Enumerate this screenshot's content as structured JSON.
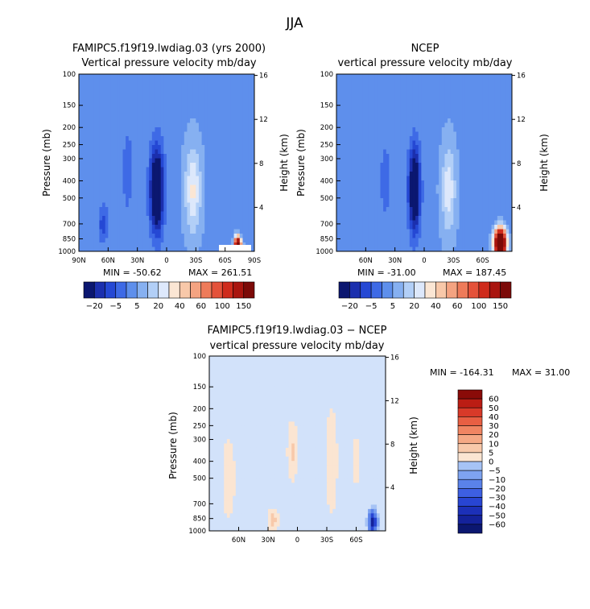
{
  "figure_title": "JJA",
  "chart_data": [
    {
      "type": "heatmap",
      "id": "model",
      "title": "FAMIPC5.f19f19.lwdiag.03 (yrs 2000)",
      "subtitle": "Vertical pressure velocity  mb/day",
      "ylabel": "Pressure (mb)",
      "y2label": "Height (km)",
      "xticks": [
        "90N",
        "60N",
        "30N",
        "0",
        "30S",
        "60S",
        "90S"
      ],
      "xtick_lat": [
        90,
        60,
        30,
        0,
        -30,
        -60,
        -90
      ],
      "xlim": [
        90,
        -90
      ],
      "yticks": [
        "100",
        "150",
        "200",
        "250",
        "300",
        "400",
        "500",
        "700",
        "850",
        "1000"
      ],
      "ytick_p": [
        100,
        150,
        200,
        250,
        300,
        400,
        500,
        700,
        850,
        1000
      ],
      "ylim": [
        1000,
        100
      ],
      "y2ticks": [
        "16",
        "12",
        "8",
        "4"
      ],
      "y2tick_km": [
        16,
        12,
        8,
        4
      ],
      "min_text": "MIN = -50.62",
      "max_text": "MAX = 261.51",
      "fill_levels": [
        -25,
        -20,
        -15,
        -10,
        -5,
        0,
        5,
        10,
        15,
        20,
        30,
        40,
        50,
        60,
        80,
        100,
        125,
        150
      ],
      "colorbar_labels": [
        "−20",
        "−5",
        "5",
        "20",
        "40",
        "60",
        "100",
        "150"
      ],
      "features": [
        {
          "lat": 10,
          "p": 450,
          "w": 7,
          "h": 0.55,
          "amp": -35
        },
        {
          "lat": 40,
          "p": 350,
          "w": 5,
          "h": 0.5,
          "amp": -9
        },
        {
          "lat": 65,
          "p": 700,
          "w": 5,
          "h": 0.25,
          "amp": -12
        },
        {
          "lat": -27,
          "p": 450,
          "w": 8,
          "h": 0.55,
          "amp": 17
        },
        {
          "lat": -73,
          "p": 930,
          "w": 3,
          "h": 0.1,
          "amp": 120
        }
      ]
    },
    {
      "type": "heatmap",
      "id": "obs",
      "title": "NCEP",
      "subtitle": "vertical pressure velocity  mb/day",
      "ylabel": "Pressure (mb)",
      "y2label": "Height (km)",
      "xticks": [
        "60N",
        "30N",
        "0",
        "30S",
        "60S"
      ],
      "xtick_lat": [
        60,
        30,
        0,
        -30,
        -60
      ],
      "xlim": [
        90,
        -90
      ],
      "yticks": [
        "100",
        "150",
        "200",
        "250",
        "300",
        "400",
        "500",
        "700",
        "850",
        "1000"
      ],
      "ytick_p": [
        100,
        150,
        200,
        250,
        300,
        400,
        500,
        700,
        850,
        1000
      ],
      "ylim": [
        1000,
        100
      ],
      "y2ticks": [
        "16",
        "12",
        "8",
        "4"
      ],
      "y2tick_km": [
        16,
        12,
        8,
        4
      ],
      "min_text": "MIN = -31.00",
      "max_text": "MAX = 187.45",
      "fill_levels": [
        -25,
        -20,
        -15,
        -10,
        -5,
        0,
        5,
        10,
        15,
        20,
        30,
        40,
        50,
        60,
        80,
        100,
        125,
        150
      ],
      "colorbar_labels": [
        "−20",
        "−5",
        "5",
        "20",
        "40",
        "60",
        "100",
        "150"
      ],
      "features": [
        {
          "lat": 10,
          "p": 450,
          "w": 6,
          "h": 0.55,
          "amp": -32
        },
        {
          "lat": 40,
          "p": 400,
          "w": 5,
          "h": 0.5,
          "amp": -8
        },
        {
          "lat": -25,
          "p": 450,
          "w": 7,
          "h": 0.55,
          "amp": 15
        },
        {
          "lat": -78,
          "p": 900,
          "w": 5,
          "h": 0.15,
          "amp": 180
        }
      ]
    },
    {
      "type": "heatmap",
      "id": "diff",
      "title": "FAMIPC5.f19f19.lwdiag.03 − NCEP",
      "subtitle": "vertical pressure velocity  mb/day",
      "ylabel": "Pressure (mb)",
      "y2label": "Height (km)",
      "xticks": [
        "60N",
        "30N",
        "0",
        "30S",
        "60S"
      ],
      "xtick_lat": [
        60,
        30,
        0,
        -30,
        -60
      ],
      "xlim": [
        90,
        -90
      ],
      "yticks": [
        "100",
        "150",
        "200",
        "250",
        "300",
        "400",
        "500",
        "700",
        "850",
        "1000"
      ],
      "ytick_p": [
        100,
        150,
        200,
        250,
        300,
        400,
        500,
        700,
        850,
        1000
      ],
      "ylim": [
        1000,
        100
      ],
      "y2ticks": [
        "16",
        "12",
        "8",
        "4"
      ],
      "y2tick_km": [
        16,
        12,
        8,
        4
      ],
      "min_text": "MIN = -164.31",
      "max_text": "MAX =  31.00",
      "fill_levels": [
        -70,
        -60,
        -50,
        -40,
        -30,
        -20,
        -10,
        -5,
        0,
        5,
        10,
        20,
        30,
        40,
        50,
        60,
        70
      ],
      "colorbar_labels": [
        "60",
        "50",
        "40",
        "30",
        "20",
        "10",
        "5",
        "0",
        "−5",
        "−10",
        "−20",
        "−30",
        "−40",
        "−50",
        "−60"
      ],
      "features": [
        {
          "lat": 25,
          "p": 870,
          "w": 4,
          "h": 0.12,
          "amp": 9
        },
        {
          "lat": 5,
          "p": 350,
          "w": 4,
          "h": 0.3,
          "amp": 7
        },
        {
          "lat": -35,
          "p": 400,
          "w": 5,
          "h": 0.6,
          "amp": 4
        },
        {
          "lat": 70,
          "p": 500,
          "w": 6,
          "h": 0.5,
          "amp": 3
        },
        {
          "lat": -60,
          "p": 400,
          "w": 3,
          "h": 0.45,
          "amp": 2
        },
        {
          "lat": -77,
          "p": 890,
          "w": 4,
          "h": 0.13,
          "amp": -65
        }
      ]
    }
  ]
}
